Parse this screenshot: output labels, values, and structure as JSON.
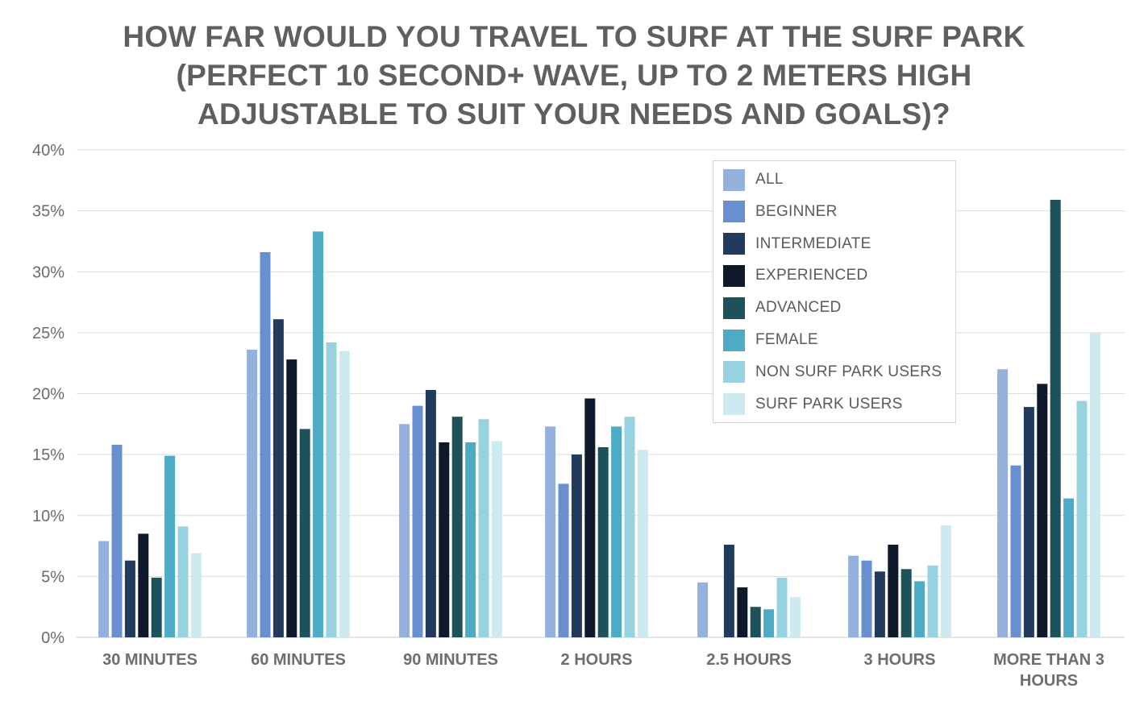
{
  "title_lines": [
    "HOW FAR WOULD YOU TRAVEL TO SURF AT THE SURF PARK",
    "(PERFECT 10 SECOND+ WAVE, UP TO 2 METERS HIGH",
    "ADJUSTABLE TO SUIT YOUR NEEDS AND GOALS)?"
  ],
  "chart_data": {
    "type": "bar",
    "title": "HOW FAR WOULD YOU TRAVEL TO SURF AT THE SURF PARK (PERFECT 10 SECOND+ WAVE, UP TO 2 METERS HIGH ADJUSTABLE TO SUIT YOUR NEEDS AND GOALS)?",
    "xlabel": "",
    "ylabel": "",
    "ylim": [
      0,
      40
    ],
    "yticks": [
      "0%",
      "5%",
      "10%",
      "15%",
      "20%",
      "25%",
      "30%",
      "35%",
      "40%"
    ],
    "grid": true,
    "legend_position": "top-right",
    "categories": [
      "30 MINUTES",
      "60 MINUTES",
      "90 MINUTES",
      "2 HOURS",
      "2.5 HOURS",
      "3 HOURS",
      "MORE THAN 3 HOURS"
    ],
    "series": [
      {
        "name": "ALL",
        "color": "#94b1de",
        "values": [
          7.9,
          23.6,
          17.5,
          17.3,
          4.5,
          6.7,
          22.0
        ]
      },
      {
        "name": "BEGINNER",
        "color": "#6890d1",
        "values": [
          15.8,
          31.6,
          19.0,
          12.6,
          0,
          6.3,
          14.1
        ]
      },
      {
        "name": "INTERMEDIATE",
        "color": "#223a5e",
        "values": [
          6.3,
          26.1,
          20.3,
          15.0,
          7.6,
          5.4,
          18.9
        ]
      },
      {
        "name": "EXPERIENCED",
        "color": "#0e1a2b",
        "values": [
          8.5,
          22.8,
          16.0,
          19.6,
          4.1,
          7.6,
          20.8
        ]
      },
      {
        "name": "ADVANCED",
        "color": "#1e525a",
        "values": [
          4.9,
          17.1,
          18.1,
          15.6,
          2.5,
          5.6,
          35.9
        ]
      },
      {
        "name": "FEMALE",
        "color": "#4eabc6",
        "values": [
          14.9,
          33.3,
          16.0,
          17.3,
          2.3,
          4.6,
          11.4
        ]
      },
      {
        "name": "NON SURF PARK USERS",
        "color": "#97d2e0",
        "values": [
          9.1,
          24.2,
          17.9,
          18.1,
          4.9,
          5.9,
          19.4
        ]
      },
      {
        "name": "SURF PARK USERS",
        "color": "#cceaf0",
        "values": [
          6.9,
          23.5,
          16.1,
          15.4,
          3.3,
          9.2,
          25.0
        ]
      }
    ]
  }
}
